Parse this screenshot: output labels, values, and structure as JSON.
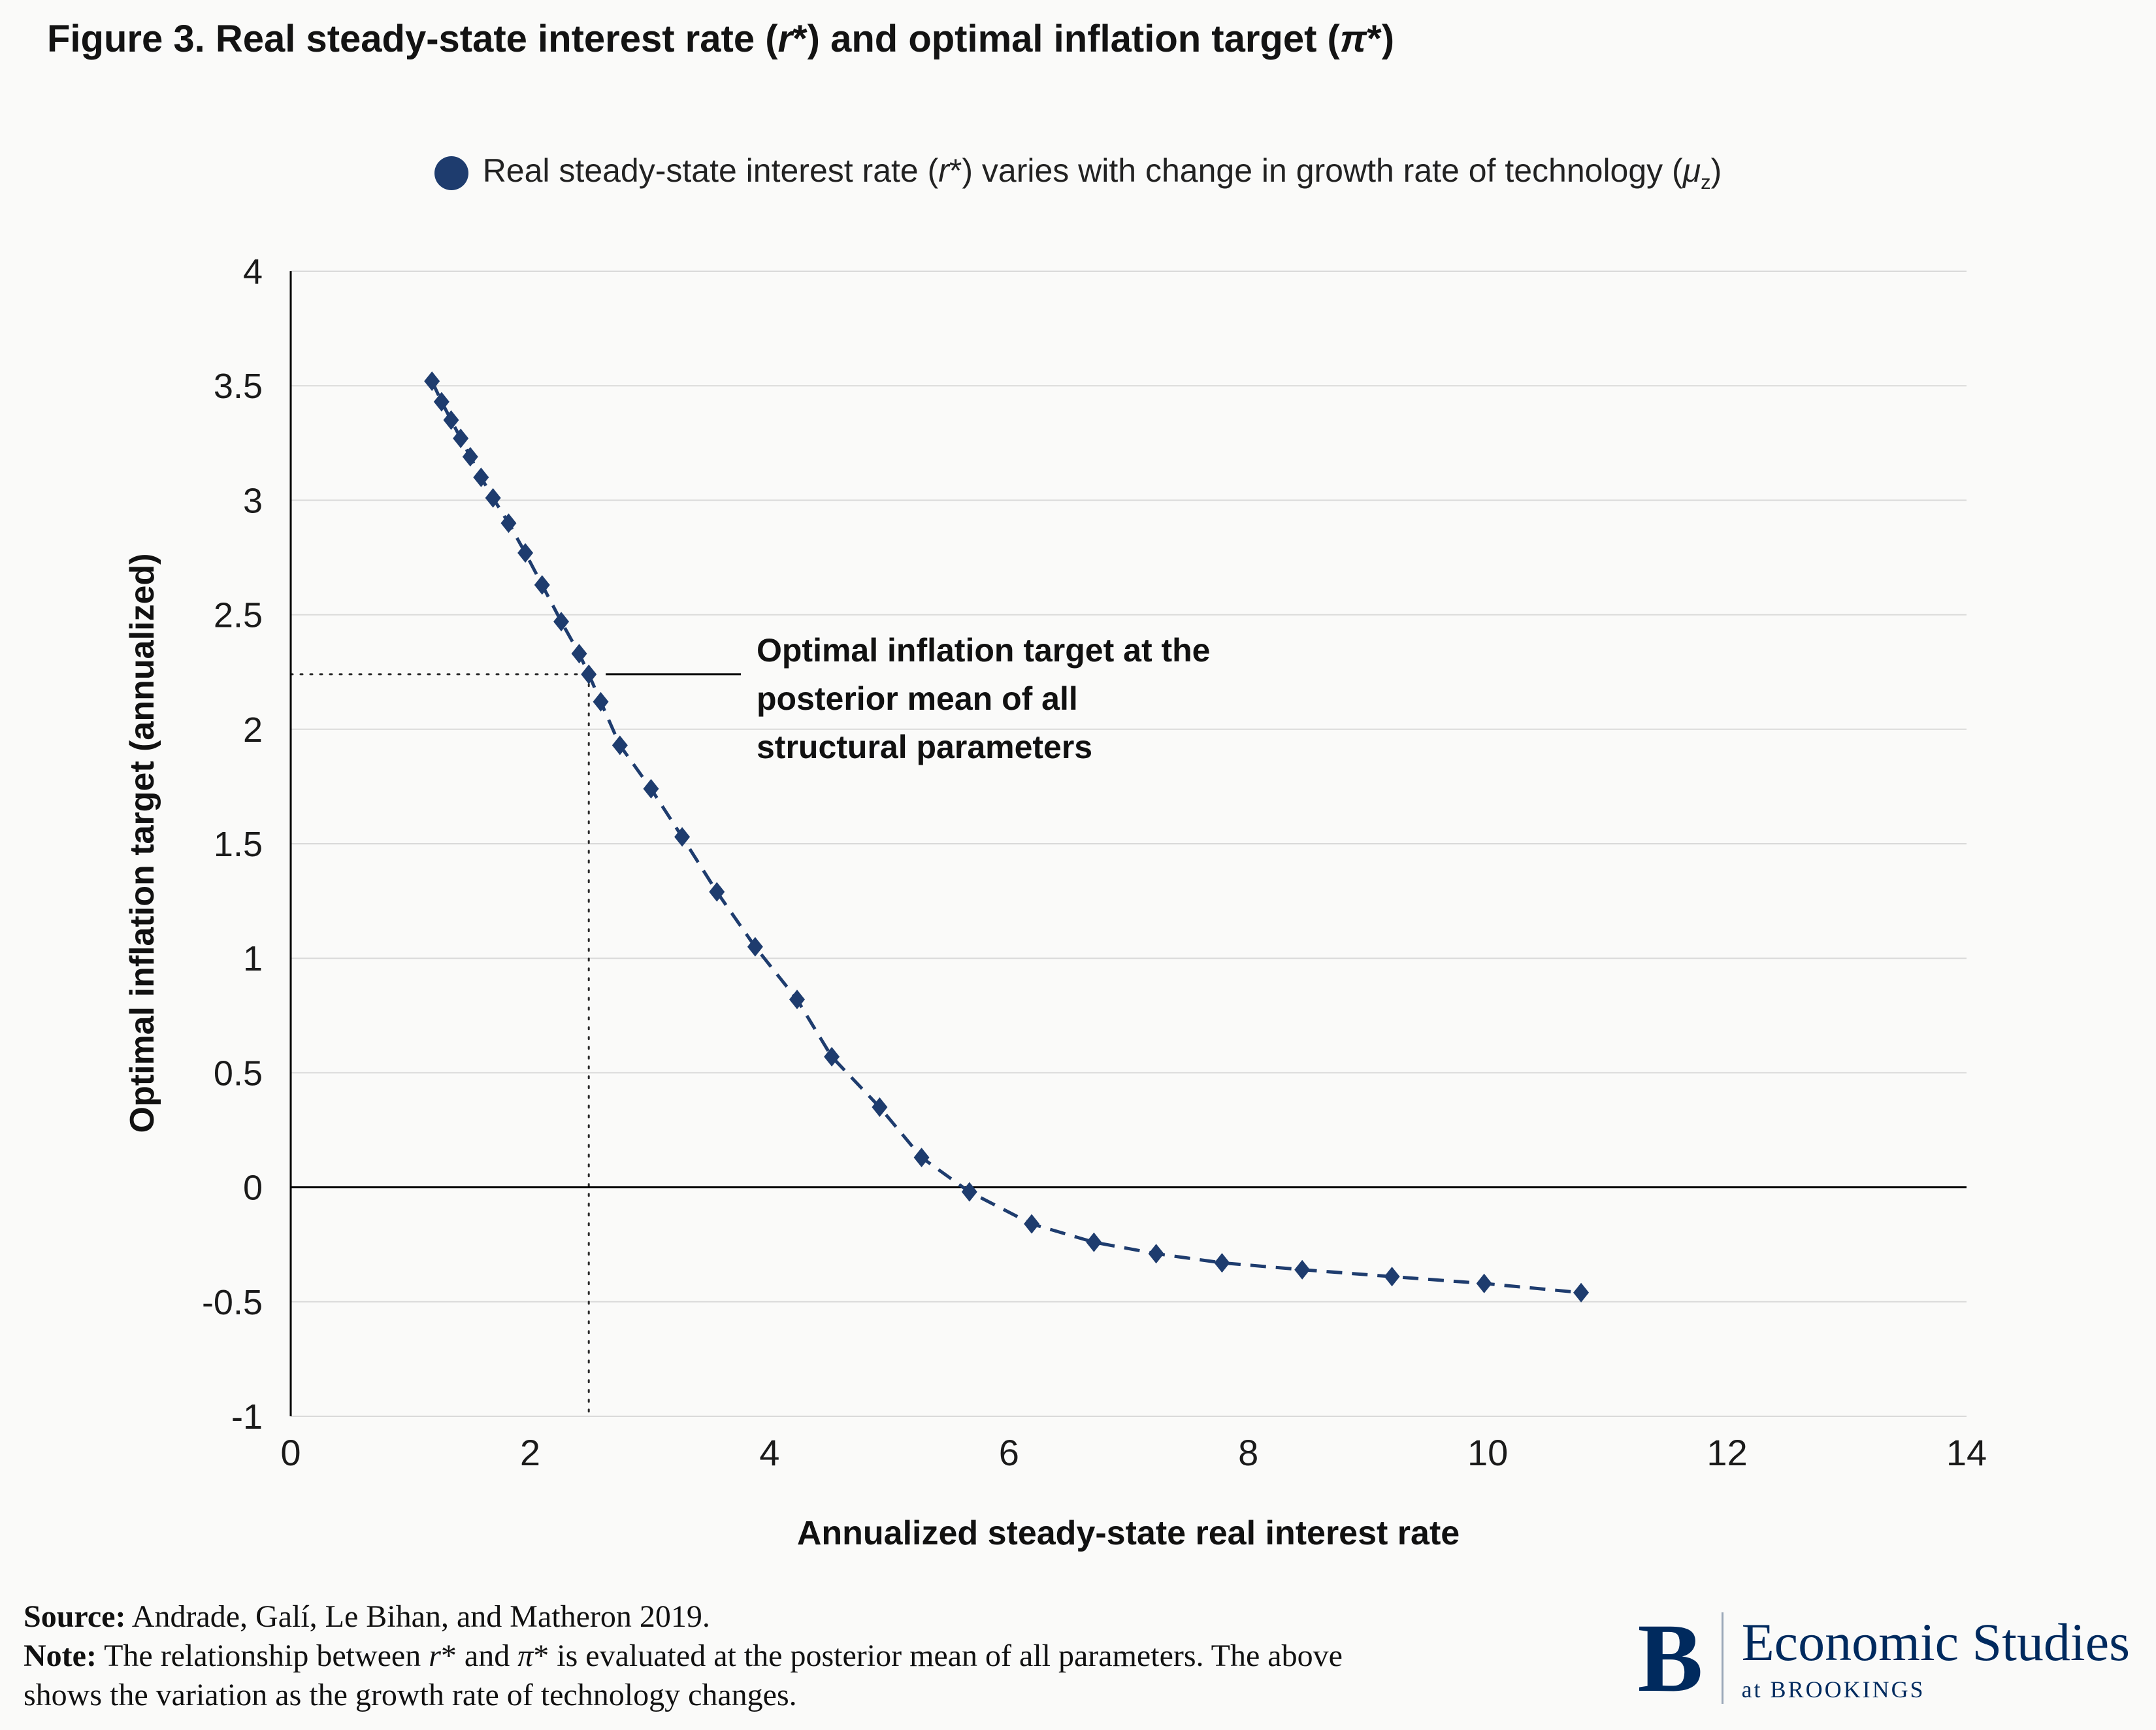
{
  "page": {
    "background": "#fafaf9"
  },
  "title": {
    "part1": "Figure 3. Real steady-state interest rate (",
    "italic1": "r",
    "part2": "*) and optimal inflation target (",
    "italic2": "π",
    "part3": "*)"
  },
  "legend": {
    "marker": "filled-circle-icon",
    "color": "#1e3c6e",
    "part1": "Real steady-state interest rate (",
    "italic_r": "r",
    "part2": "*) varies with change in growth rate of technology (",
    "italic_mu": "μ",
    "subscript": "z",
    "part3": ")"
  },
  "chart_data": {
    "type": "scatter",
    "title": "Figure 3. Real steady-state interest rate (r*) and optimal inflation target (π*)",
    "xlabel": "Annualized steady-state real interest rate",
    "ylabel": "Optimal inflation target (annualized)",
    "xlim": [
      0,
      14
    ],
    "ylim": [
      -1,
      4
    ],
    "x_ticks": [
      0,
      2,
      4,
      6,
      8,
      10,
      12,
      14
    ],
    "y_ticks": [
      4,
      3.5,
      3,
      2.5,
      2,
      1.5,
      1,
      0.5,
      0,
      -0.5,
      -1
    ],
    "grid": "horizontal-light",
    "zero_line": 0,
    "legend_position": "top",
    "series": [
      {
        "name": "Real steady-state interest rate (r*) varies with change in growth rate of technology (μ_z)",
        "marker": "diamond",
        "line_style": "dashed",
        "color": "#1e3c6e",
        "points": [
          [
            1.18,
            3.52
          ],
          [
            1.26,
            3.43
          ],
          [
            1.34,
            3.35
          ],
          [
            1.42,
            3.27
          ],
          [
            1.5,
            3.19
          ],
          [
            1.59,
            3.1
          ],
          [
            1.69,
            3.01
          ],
          [
            1.82,
            2.9
          ],
          [
            1.96,
            2.77
          ],
          [
            2.1,
            2.63
          ],
          [
            2.26,
            2.47
          ],
          [
            2.41,
            2.33
          ],
          [
            2.49,
            2.24
          ],
          [
            2.59,
            2.12
          ],
          [
            2.75,
            1.93
          ],
          [
            3.01,
            1.74
          ],
          [
            3.27,
            1.53
          ],
          [
            3.56,
            1.29
          ],
          [
            3.88,
            1.05
          ],
          [
            4.23,
            0.82
          ],
          [
            4.52,
            0.57
          ],
          [
            4.92,
            0.35
          ],
          [
            5.27,
            0.13
          ],
          [
            5.67,
            -0.02
          ],
          [
            6.19,
            -0.16
          ],
          [
            6.71,
            -0.24
          ],
          [
            7.23,
            -0.29
          ],
          [
            7.78,
            -0.33
          ],
          [
            8.45,
            -0.36
          ],
          [
            9.2,
            -0.39
          ],
          [
            9.97,
            -0.42
          ],
          [
            10.78,
            -0.46
          ]
        ]
      }
    ],
    "reference_lines": {
      "x": 2.49,
      "y": 2.24,
      "style": "dotted"
    },
    "annotation": {
      "text": "Optimal inflation target at the\nposterior mean of all\nstructural parameters",
      "leader_y": 2.24
    }
  },
  "footer": {
    "source_label": "Source:",
    "source_text": " Andrade, Galí, Le Bihan, and Matheron 2019.",
    "note_label": "Note:",
    "note_part1": " The relationship between ",
    "note_italic1": "r",
    "note_part2": "* and ",
    "note_italic2": "π",
    "note_part3": "* is evaluated at the posterior mean of all parameters. The above shows the variation as the growth rate of technology changes."
  },
  "logo": {
    "letter": "B",
    "name": "Economic Studies",
    "tagline": "at BROOKINGS"
  },
  "colors": {
    "accent_navy": "#1e3c6e",
    "logo_navy": "#002a5e",
    "grid": "#d9d9d9",
    "axis": "#000000",
    "tick_text": "#1a1a1a"
  }
}
